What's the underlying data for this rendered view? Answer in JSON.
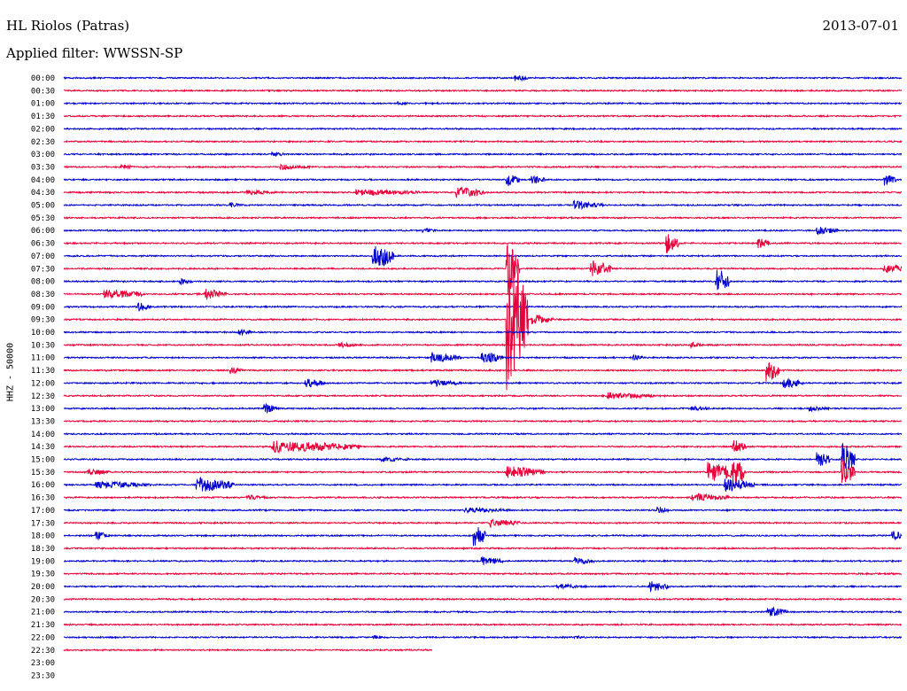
{
  "header": {
    "station": "HL Riolos (Patras)",
    "filter": "Applied filter: WWSSN-SP",
    "date": "2013-07-01"
  },
  "chart_data": {
    "type": "line",
    "subtype": "helicorder-seismogram",
    "title": "HL Riolos (Patras)",
    "subtitle": "Applied filter: WWSSN-SP",
    "date": "2013-07-01",
    "ylabel": "HHZ - 50000",
    "grid": false,
    "row_interval_minutes": 30,
    "row_labels": [
      "00:00",
      "00:30",
      "01:00",
      "01:30",
      "02:00",
      "02:30",
      "03:00",
      "03:30",
      "04:00",
      "04:30",
      "05:00",
      "05:30",
      "06:00",
      "06:30",
      "07:00",
      "07:30",
      "08:00",
      "08:30",
      "09:00",
      "09:30",
      "10:00",
      "10:30",
      "11:00",
      "11:30",
      "12:00",
      "12:30",
      "13:00",
      "13:30",
      "14:00",
      "14:30",
      "15:00",
      "15:30",
      "16:00",
      "16:30",
      "17:00",
      "17:30",
      "18:00",
      "18:30",
      "19:00",
      "19:30",
      "20:00",
      "20:30",
      "21:00",
      "21:30",
      "22:00",
      "22:30",
      "23:00",
      "23:30"
    ],
    "trace_colors": [
      "#0000cc",
      "#e8003a"
    ],
    "rows_with_data": 46,
    "last_row_fraction": 0.44,
    "events": [
      {
        "row": 0,
        "pos": 0.54,
        "amp": 4,
        "dur": 0.01
      },
      {
        "row": 2,
        "pos": 0.4,
        "amp": 2,
        "dur": 0.01
      },
      {
        "row": 6,
        "pos": 0.25,
        "amp": 3,
        "dur": 0.01
      },
      {
        "row": 7,
        "pos": 0.07,
        "amp": 3,
        "dur": 0.01
      },
      {
        "row": 7,
        "pos": 0.26,
        "amp": 3,
        "dur": 0.03
      },
      {
        "row": 8,
        "pos": 0.53,
        "amp": 8,
        "dur": 0.01
      },
      {
        "row": 8,
        "pos": 0.56,
        "amp": 5,
        "dur": 0.01
      },
      {
        "row": 8,
        "pos": 0.98,
        "amp": 7,
        "dur": 0.01
      },
      {
        "row": 9,
        "pos": 0.22,
        "amp": 3,
        "dur": 0.03
      },
      {
        "row": 9,
        "pos": 0.35,
        "amp": 4,
        "dur": 0.07
      },
      {
        "row": 9,
        "pos": 0.47,
        "amp": 6,
        "dur": 0.03
      },
      {
        "row": 10,
        "pos": 0.2,
        "amp": 3,
        "dur": 0.01
      },
      {
        "row": 10,
        "pos": 0.61,
        "amp": 5,
        "dur": 0.03
      },
      {
        "row": 12,
        "pos": 0.43,
        "amp": 3,
        "dur": 0.01
      },
      {
        "row": 12,
        "pos": 0.9,
        "amp": 5,
        "dur": 0.02
      },
      {
        "row": 13,
        "pos": 0.72,
        "amp": 12,
        "dur": 0.01
      },
      {
        "row": 13,
        "pos": 0.83,
        "amp": 6,
        "dur": 0.01
      },
      {
        "row": 14,
        "pos": 0.37,
        "amp": 16,
        "dur": 0.02
      },
      {
        "row": 15,
        "pos": 0.53,
        "amp": 30,
        "dur": 0.01
      },
      {
        "row": 15,
        "pos": 0.63,
        "amp": 10,
        "dur": 0.02
      },
      {
        "row": 15,
        "pos": 0.98,
        "amp": 6,
        "dur": 0.02
      },
      {
        "row": 16,
        "pos": 0.14,
        "amp": 4,
        "dur": 0.01
      },
      {
        "row": 16,
        "pos": 0.78,
        "amp": 16,
        "dur": 0.01
      },
      {
        "row": 17,
        "pos": 0.05,
        "amp": 6,
        "dur": 0.04
      },
      {
        "row": 17,
        "pos": 0.17,
        "amp": 6,
        "dur": 0.02
      },
      {
        "row": 18,
        "pos": 0.09,
        "amp": 5,
        "dur": 0.01
      },
      {
        "row": 19,
        "pos": 0.53,
        "amp": 80,
        "dur": 0.02
      },
      {
        "row": 19,
        "pos": 0.56,
        "amp": 6,
        "dur": 0.02
      },
      {
        "row": 20,
        "pos": 0.21,
        "amp": 4,
        "dur": 0.01
      },
      {
        "row": 21,
        "pos": 0.33,
        "amp": 3,
        "dur": 0.02
      },
      {
        "row": 21,
        "pos": 0.75,
        "amp": 3,
        "dur": 0.01
      },
      {
        "row": 22,
        "pos": 0.44,
        "amp": 6,
        "dur": 0.03
      },
      {
        "row": 22,
        "pos": 0.5,
        "amp": 7,
        "dur": 0.02
      },
      {
        "row": 22,
        "pos": 0.68,
        "amp": 3,
        "dur": 0.01
      },
      {
        "row": 23,
        "pos": 0.2,
        "amp": 4,
        "dur": 0.01
      },
      {
        "row": 23,
        "pos": 0.84,
        "amp": 14,
        "dur": 0.01
      },
      {
        "row": 24,
        "pos": 0.29,
        "amp": 5,
        "dur": 0.02
      },
      {
        "row": 24,
        "pos": 0.44,
        "amp": 4,
        "dur": 0.03
      },
      {
        "row": 24,
        "pos": 0.86,
        "amp": 6,
        "dur": 0.02
      },
      {
        "row": 25,
        "pos": 0.65,
        "amp": 4,
        "dur": 0.05
      },
      {
        "row": 26,
        "pos": 0.24,
        "amp": 6,
        "dur": 0.01
      },
      {
        "row": 26,
        "pos": 0.75,
        "amp": 3,
        "dur": 0.02
      },
      {
        "row": 26,
        "pos": 0.89,
        "amp": 3,
        "dur": 0.02
      },
      {
        "row": 29,
        "pos": 0.25,
        "amp": 7,
        "dur": 0.1
      },
      {
        "row": 29,
        "pos": 0.8,
        "amp": 8,
        "dur": 0.01
      },
      {
        "row": 30,
        "pos": 0.38,
        "amp": 3,
        "dur": 0.03
      },
      {
        "row": 30,
        "pos": 0.9,
        "amp": 10,
        "dur": 0.01
      },
      {
        "row": 30,
        "pos": 0.93,
        "amp": 20,
        "dur": 0.01
      },
      {
        "row": 31,
        "pos": 0.03,
        "amp": 4,
        "dur": 0.02
      },
      {
        "row": 31,
        "pos": 0.53,
        "amp": 7,
        "dur": 0.04
      },
      {
        "row": 31,
        "pos": 0.77,
        "amp": 12,
        "dur": 0.03
      },
      {
        "row": 31,
        "pos": 0.8,
        "amp": 18,
        "dur": 0.01
      },
      {
        "row": 31,
        "pos": 0.93,
        "amp": 16,
        "dur": 0.01
      },
      {
        "row": 32,
        "pos": 0.04,
        "amp": 4,
        "dur": 0.06
      },
      {
        "row": 32,
        "pos": 0.16,
        "amp": 9,
        "dur": 0.04
      },
      {
        "row": 32,
        "pos": 0.79,
        "amp": 8,
        "dur": 0.03
      },
      {
        "row": 33,
        "pos": 0.22,
        "amp": 3,
        "dur": 0.02
      },
      {
        "row": 33,
        "pos": 0.75,
        "amp": 5,
        "dur": 0.04
      },
      {
        "row": 34,
        "pos": 0.48,
        "amp": 3,
        "dur": 0.05
      },
      {
        "row": 34,
        "pos": 0.71,
        "amp": 4,
        "dur": 0.01
      },
      {
        "row": 35,
        "pos": 0.51,
        "amp": 5,
        "dur": 0.03
      },
      {
        "row": 36,
        "pos": 0.04,
        "amp": 5,
        "dur": 0.01
      },
      {
        "row": 36,
        "pos": 0.49,
        "amp": 14,
        "dur": 0.01
      },
      {
        "row": 36,
        "pos": 0.99,
        "amp": 6,
        "dur": 0.01
      },
      {
        "row": 38,
        "pos": 0.5,
        "amp": 5,
        "dur": 0.02
      },
      {
        "row": 38,
        "pos": 0.61,
        "amp": 4,
        "dur": 0.02
      },
      {
        "row": 40,
        "pos": 0.59,
        "amp": 3,
        "dur": 0.03
      },
      {
        "row": 40,
        "pos": 0.7,
        "amp": 6,
        "dur": 0.02
      },
      {
        "row": 42,
        "pos": 0.84,
        "amp": 6,
        "dur": 0.02
      },
      {
        "row": 44,
        "pos": 0.37,
        "amp": 2,
        "dur": 0.01
      },
      {
        "row": 44,
        "pos": 0.61,
        "amp": 2,
        "dur": 0.01
      }
    ]
  }
}
